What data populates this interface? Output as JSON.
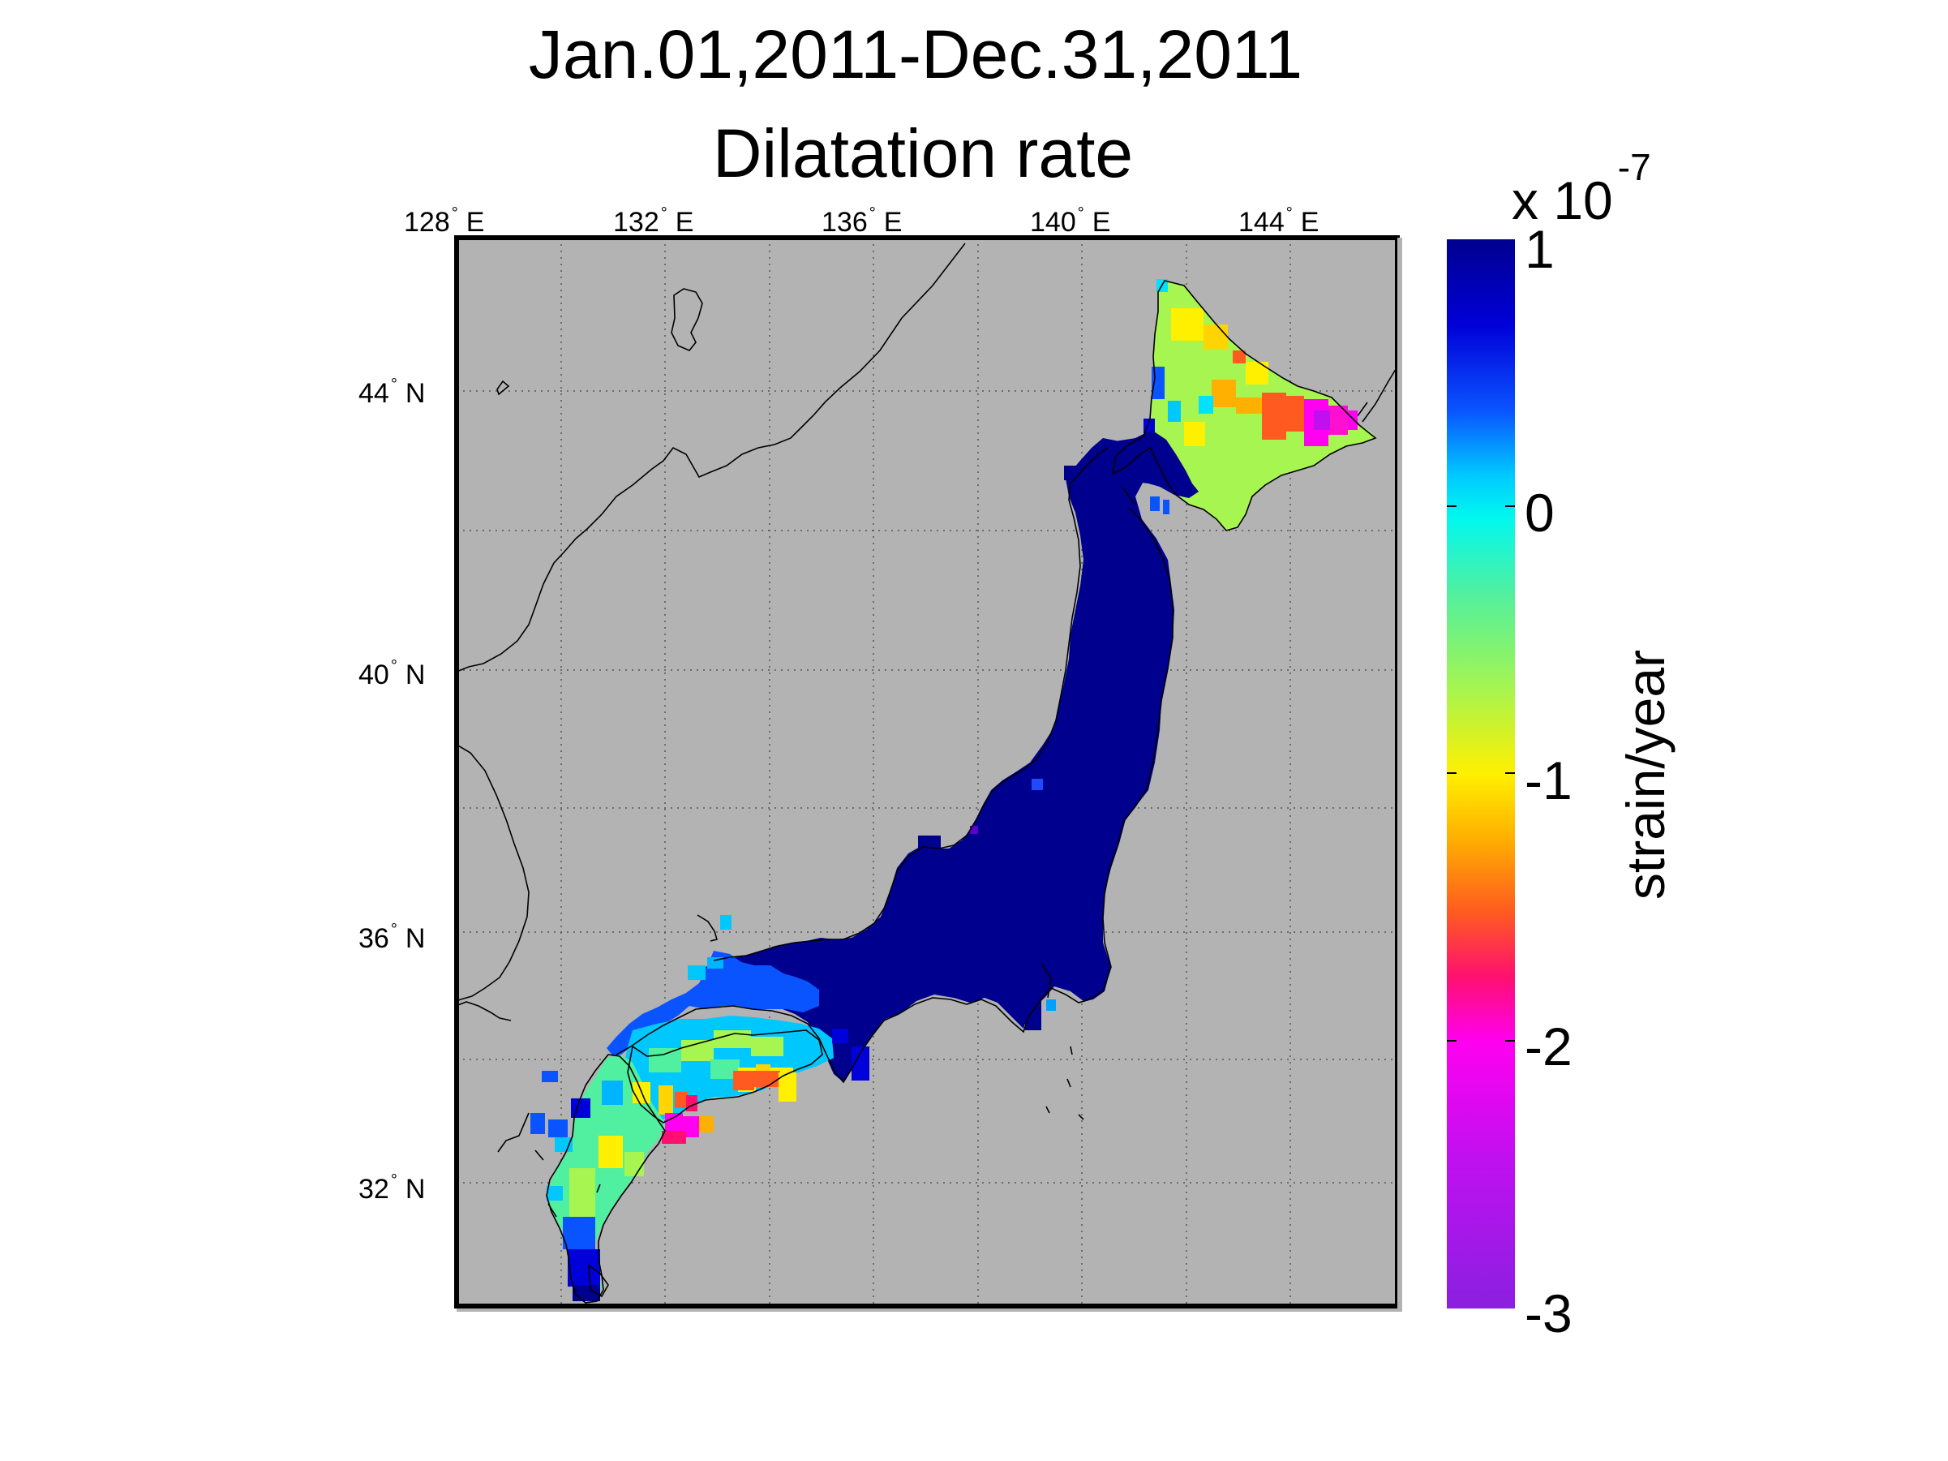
{
  "title": {
    "line1": "Jan.01,2011-Dec.31,2011",
    "line2": "Dilatation rate"
  },
  "map": {
    "land_color": "#b3b3b3",
    "longitude_ticks": [
      {
        "value": 128,
        "label": "128",
        "deg": "°",
        "hemi": "E"
      },
      {
        "value": 132,
        "label": "132",
        "deg": "°",
        "hemi": "E"
      },
      {
        "value": 136,
        "label": "136",
        "deg": "°",
        "hemi": "E"
      },
      {
        "value": 140,
        "label": "140",
        "deg": "°",
        "hemi": "E"
      },
      {
        "value": 144,
        "label": "144",
        "deg": "°",
        "hemi": "E"
      }
    ],
    "latitude_ticks": [
      {
        "value": 44,
        "label": "44",
        "deg": "°",
        "hemi": "N"
      },
      {
        "value": 40,
        "label": "40",
        "deg": "°",
        "hemi": "N"
      },
      {
        "value": 36,
        "label": "36",
        "deg": "°",
        "hemi": "N"
      },
      {
        "value": 32,
        "label": "32",
        "deg": "°",
        "hemi": "N"
      }
    ]
  },
  "colorbar": {
    "exponent_label": "x 10",
    "exponent": "-7",
    "axis_label": "strain/year",
    "ticks": [
      "1",
      "0",
      "-1",
      "-2",
      "-3"
    ],
    "range": [
      -3,
      1
    ],
    "gradient_stops": [
      "#00008f",
      "#0000d8",
      "#0a54ff",
      "#00c8ff",
      "#00f8f0",
      "#50f0a0",
      "#a6f550",
      "#fff000",
      "#ffb000",
      "#ff5a20",
      "#ff1070",
      "#ff00f0",
      "#c010f0",
      "#8a20e0"
    ]
  }
}
